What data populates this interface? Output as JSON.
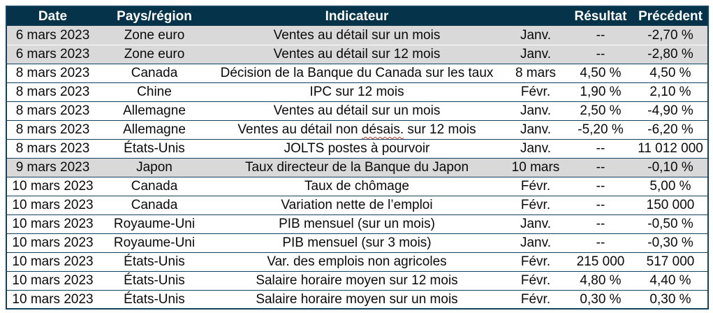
{
  "colors": {
    "header_bg": "#04334a",
    "shaded_row_bg": "#d9d9d9",
    "grid_border": "#12425c",
    "spellcheck_underline": "#c0392b",
    "header_text": "#ffffff",
    "body_text": "#0a0a0a"
  },
  "table": {
    "columns": [
      {
        "key": "date",
        "label": "Date"
      },
      {
        "key": "region",
        "label": "Pays/région"
      },
      {
        "key": "indicator",
        "label": "Indicateur"
      },
      {
        "key": "period",
        "label": ""
      },
      {
        "key": "result",
        "label": "Résultat"
      },
      {
        "key": "previous",
        "label": "Précédent"
      }
    ],
    "rows": [
      {
        "date": "6 mars 2023",
        "region": "Zone euro",
        "indicator": "Ventes au détail sur un mois",
        "period": "Janv.",
        "result": "--",
        "previous": "-2,70 %",
        "shaded": true
      },
      {
        "date": "6 mars 2023",
        "region": "Zone euro",
        "indicator": "Ventes au détail sur 12 mois",
        "period": "Janv.",
        "result": "--",
        "previous": "-2,80 %",
        "shaded": true
      },
      {
        "date": "8 mars 2023",
        "region": "Canada",
        "indicator": "Décision de la Banque du Canada sur les taux",
        "period": "8 mars",
        "result": "4,50 %",
        "previous": "4,50 %",
        "shaded": false
      },
      {
        "date": "8 mars 2023",
        "region": "Chine",
        "indicator": "IPC sur 12 mois",
        "period": "Févr.",
        "result": "1,90 %",
        "previous": "2,10 %",
        "shaded": false
      },
      {
        "date": "8 mars 2023",
        "region": "Allemagne",
        "indicator": "Ventes au détail sur un mois",
        "period": "Janv.",
        "result": "2,50 %",
        "previous": "-4,90 %",
        "shaded": false
      },
      {
        "date": "8 mars 2023",
        "region": "Allemagne",
        "indicator": "Ventes au détail non désais. sur 12 mois",
        "period": "Janv.",
        "result": "-5,20 %",
        "previous": "-6,20 %",
        "shaded": false,
        "misspelled": "désais."
      },
      {
        "date": "8 mars 2023",
        "region": "États-Unis",
        "indicator": "JOLTS postes à pourvoir",
        "period": "Janv.",
        "result": "--",
        "previous": "11 012 000",
        "shaded": false
      },
      {
        "date": "9 mars 2023",
        "region": "Japon",
        "indicator": "Taux directeur de la Banque du Japon",
        "period": "10 mars",
        "result": "--",
        "previous": "-0,10 %",
        "shaded": true
      },
      {
        "date": "10 mars 2023",
        "region": "Canada",
        "indicator": "Taux de chômage",
        "period": "Févr.",
        "result": "--",
        "previous": "5,00 %",
        "shaded": false
      },
      {
        "date": "10 mars 2023",
        "region": "Canada",
        "indicator": "Variation nette de l’emploi",
        "period": "Févr.",
        "result": "--",
        "previous": "150 000",
        "shaded": false
      },
      {
        "date": "10 mars 2023",
        "region": "Royaume-Uni",
        "indicator": "PIB mensuel (sur un mois)",
        "period": "Janv.",
        "result": "--",
        "previous": "-0,50 %",
        "shaded": false
      },
      {
        "date": "10 mars 2023",
        "region": "Royaume-Uni",
        "indicator": "PIB mensuel (sur 3 mois)",
        "period": "Janv.",
        "result": "--",
        "previous": "-0,30 %",
        "shaded": false
      },
      {
        "date": "10 mars 2023",
        "region": "États-Unis",
        "indicator": "Var. des emplois non agricoles",
        "period": "Févr.",
        "result": "215 000",
        "previous": "517 000",
        "shaded": false
      },
      {
        "date": "10 mars 2023",
        "region": "États-Unis",
        "indicator": "Salaire horaire moyen sur 12 mois",
        "period": "Févr.",
        "result": "4,80 %",
        "previous": "4,40 %",
        "shaded": false
      },
      {
        "date": "10 mars 2023",
        "region": "États-Unis",
        "indicator": "Salaire horaire moyen sur un mois",
        "period": "Févr.",
        "result": "0,30 %",
        "previous": "0,30 %",
        "shaded": false
      }
    ]
  }
}
